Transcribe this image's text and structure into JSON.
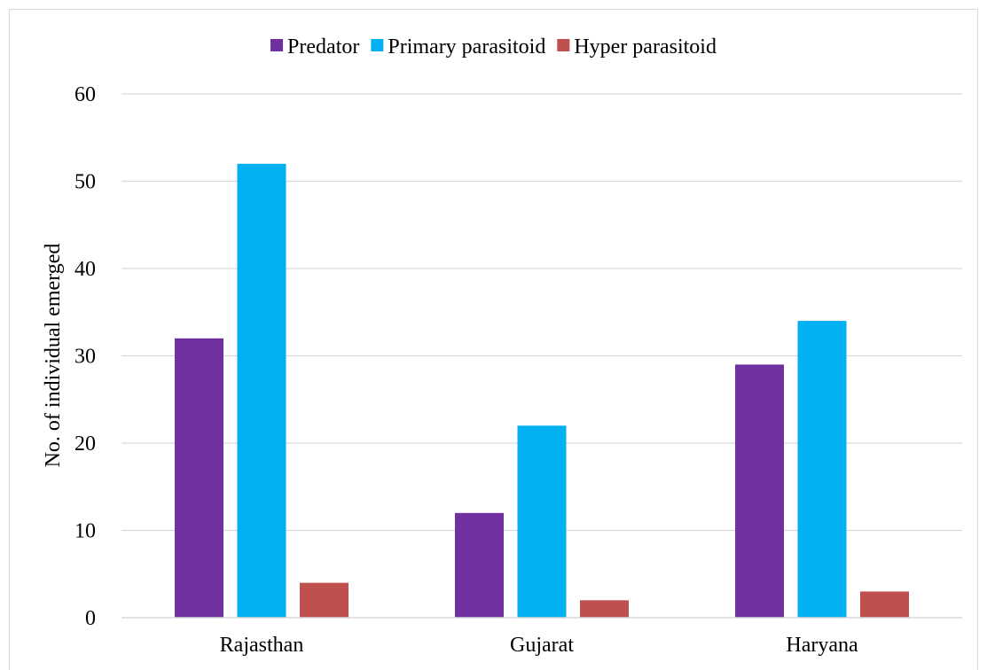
{
  "chart_data": {
    "type": "bar",
    "categories": [
      "Rajasthan",
      "Gujarat",
      "Haryana"
    ],
    "series": [
      {
        "name": "Predator",
        "color": "#7030a0",
        "values": [
          32,
          12,
          29
        ]
      },
      {
        "name": "Primary parasitoid",
        "color": "#00b0f0",
        "values": [
          52,
          22,
          34
        ]
      },
      {
        "name": "Hyper parasitoid",
        "color": "#c0504d",
        "values": [
          4,
          2,
          3
        ]
      }
    ],
    "title": "",
    "xlabel": "",
    "ylabel": "No. of individual emerged",
    "ylim": [
      0,
      60
    ],
    "yticks": [
      "0",
      "10",
      "20",
      "30",
      "40",
      "50",
      "60"
    ],
    "grid": true,
    "legend_position": "top-center"
  }
}
